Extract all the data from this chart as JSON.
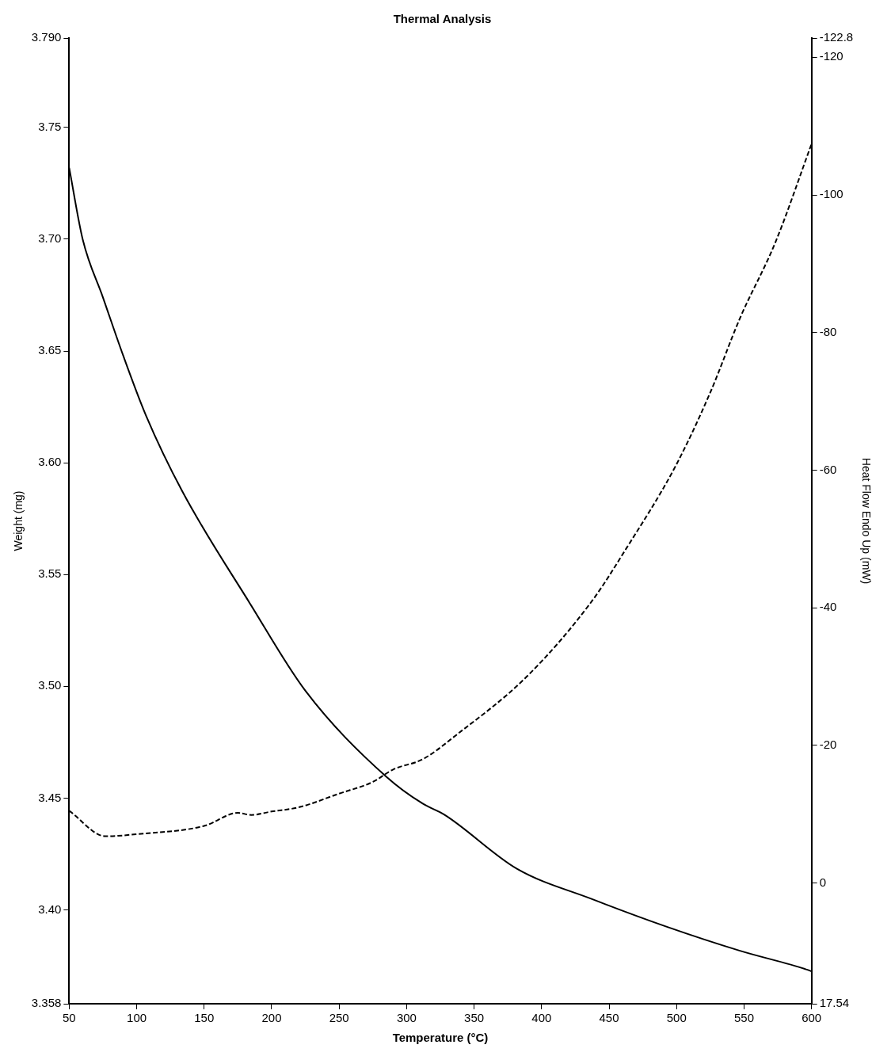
{
  "chart_data": {
    "type": "line",
    "title": "Thermal Analysis",
    "xlabel": "Temperature (°C)",
    "ylabel": "Weight (mg)",
    "y2label": "Heat Flow Endo Up (mW)",
    "xlim": [
      50,
      600
    ],
    "xticks": [
      50,
      100,
      150,
      200,
      250,
      300,
      350,
      400,
      450,
      500,
      550,
      600
    ],
    "ylim": [
      3.358,
      3.79
    ],
    "yticks": [
      3.358,
      {
        "value": 3.4,
        "label": "3.40"
      },
      3.45,
      {
        "value": 3.5,
        "label": "3.50"
      },
      3.55,
      {
        "value": 3.6,
        "label": "3.60"
      },
      3.65,
      {
        "value": 3.7,
        "label": "3.70"
      },
      3.75,
      {
        "value": 3.79,
        "label": "3.790"
      }
    ],
    "y2lim": [
      17.54,
      -122.8
    ],
    "y2ticks": [
      17.54,
      0,
      -20,
      -40,
      -60,
      -80,
      -100,
      -120,
      -122.8
    ],
    "grid": false,
    "legend": false,
    "marker": "none",
    "series": [
      {
        "color": "#000000",
        "line_style": "solid",
        "x": [
          50,
          60,
          75,
          90,
          107,
          134,
          184,
          225,
          285,
          312,
          328,
          382,
          437,
          492,
          547,
          597,
          600
        ],
        "values": [
          3.732,
          3.7,
          3.674,
          3.648,
          3.621,
          3.587,
          3.537,
          3.498,
          3.4595,
          3.4475,
          3.4426,
          3.4183,
          3.4049,
          3.3926,
          3.3817,
          3.3732,
          3.3725
        ]
      },
      {
        "color": "#000000",
        "line_style": "dashed",
        "axis": "y2",
        "x": [
          50,
          77,
          100,
          150,
          175,
          185,
          200,
          220,
          250,
          275,
          290,
          312,
          338,
          389,
          437,
          463,
          499,
          525,
          547,
          573,
          600
        ],
        "values": [
          -10.5,
          -6.8,
          -7.1,
          -8.3,
          -10.2,
          -9.9,
          -10.4,
          -11.0,
          -13.0,
          -14.7,
          -16.5,
          -18.0,
          -21.7,
          -30.0,
          -40.9,
          -48.7,
          -60.5,
          -71.3,
          -82.1,
          -93.0,
          -107.4
        ]
      }
    ]
  }
}
